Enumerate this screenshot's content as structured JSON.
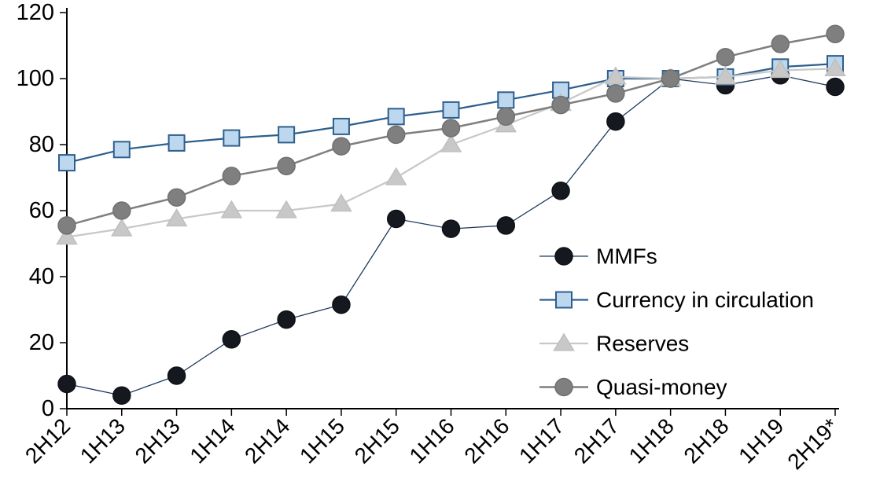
{
  "chart_data": {
    "type": "line",
    "title": "",
    "xlabel": "",
    "ylabel": "",
    "grid": false,
    "legend_position": "inside-right",
    "categories": [
      "2H12",
      "1H13",
      "2H13",
      "1H14",
      "2H14",
      "1H15",
      "2H15",
      "1H16",
      "2H16",
      "1H17",
      "2H17",
      "1H18",
      "2H18",
      "1H19",
      "2H19*"
    ],
    "y_axis": {
      "min": 0,
      "max": 120,
      "step": 20,
      "tick_labels": [
        "0",
        "20",
        "40",
        "60",
        "80",
        "100",
        "120"
      ]
    },
    "series": [
      {
        "name": "MMFs",
        "marker": "circle",
        "line_color": "#1f3a5f",
        "marker_fill": "#15181e",
        "marker_stroke": "#0e1116",
        "line_width": 1.3,
        "marker_size": 11,
        "values": [
          7.5,
          4,
          10,
          21,
          27,
          31.5,
          57.5,
          54.5,
          55.5,
          66,
          87,
          100,
          98,
          101,
          97.5
        ]
      },
      {
        "name": "Currency in circulation",
        "marker": "square",
        "line_color": "#2d5f8d",
        "marker_fill": "#bdd7ee",
        "marker_stroke": "#2d5f8d",
        "line_width": 2.25,
        "marker_size": 10,
        "values": [
          74.5,
          78.5,
          80.5,
          82,
          83,
          85.5,
          88.5,
          90.5,
          93.5,
          96.5,
          100,
          100,
          100.5,
          103.5,
          104.5
        ]
      },
      {
        "name": "Reserves",
        "marker": "triangle",
        "line_color": "#c8c8c8",
        "marker_fill": "#c8c8c8",
        "marker_stroke": "#bfbfbf",
        "line_width": 2.25,
        "marker_size": 12,
        "values": [
          52,
          54.5,
          57.5,
          60,
          60,
          62,
          70,
          80,
          86,
          92.5,
          100.5,
          100,
          100.5,
          102.5,
          103
        ]
      },
      {
        "name": "Quasi-money",
        "marker": "circle",
        "line_color": "#7f7f7f",
        "marker_fill": "#7f7f7f",
        "marker_stroke": "#707070",
        "line_width": 2.5,
        "marker_size": 11,
        "values": [
          55.5,
          60,
          64,
          70.5,
          73.5,
          79.5,
          83,
          85,
          88.5,
          92,
          95.5,
          100,
          106.5,
          110.5,
          113.5
        ]
      }
    ],
    "legend": {
      "items": [
        "MMFs",
        "Currency in circulation",
        "Reserves",
        "Quasi-money"
      ]
    },
    "axis_color": "#000000"
  }
}
